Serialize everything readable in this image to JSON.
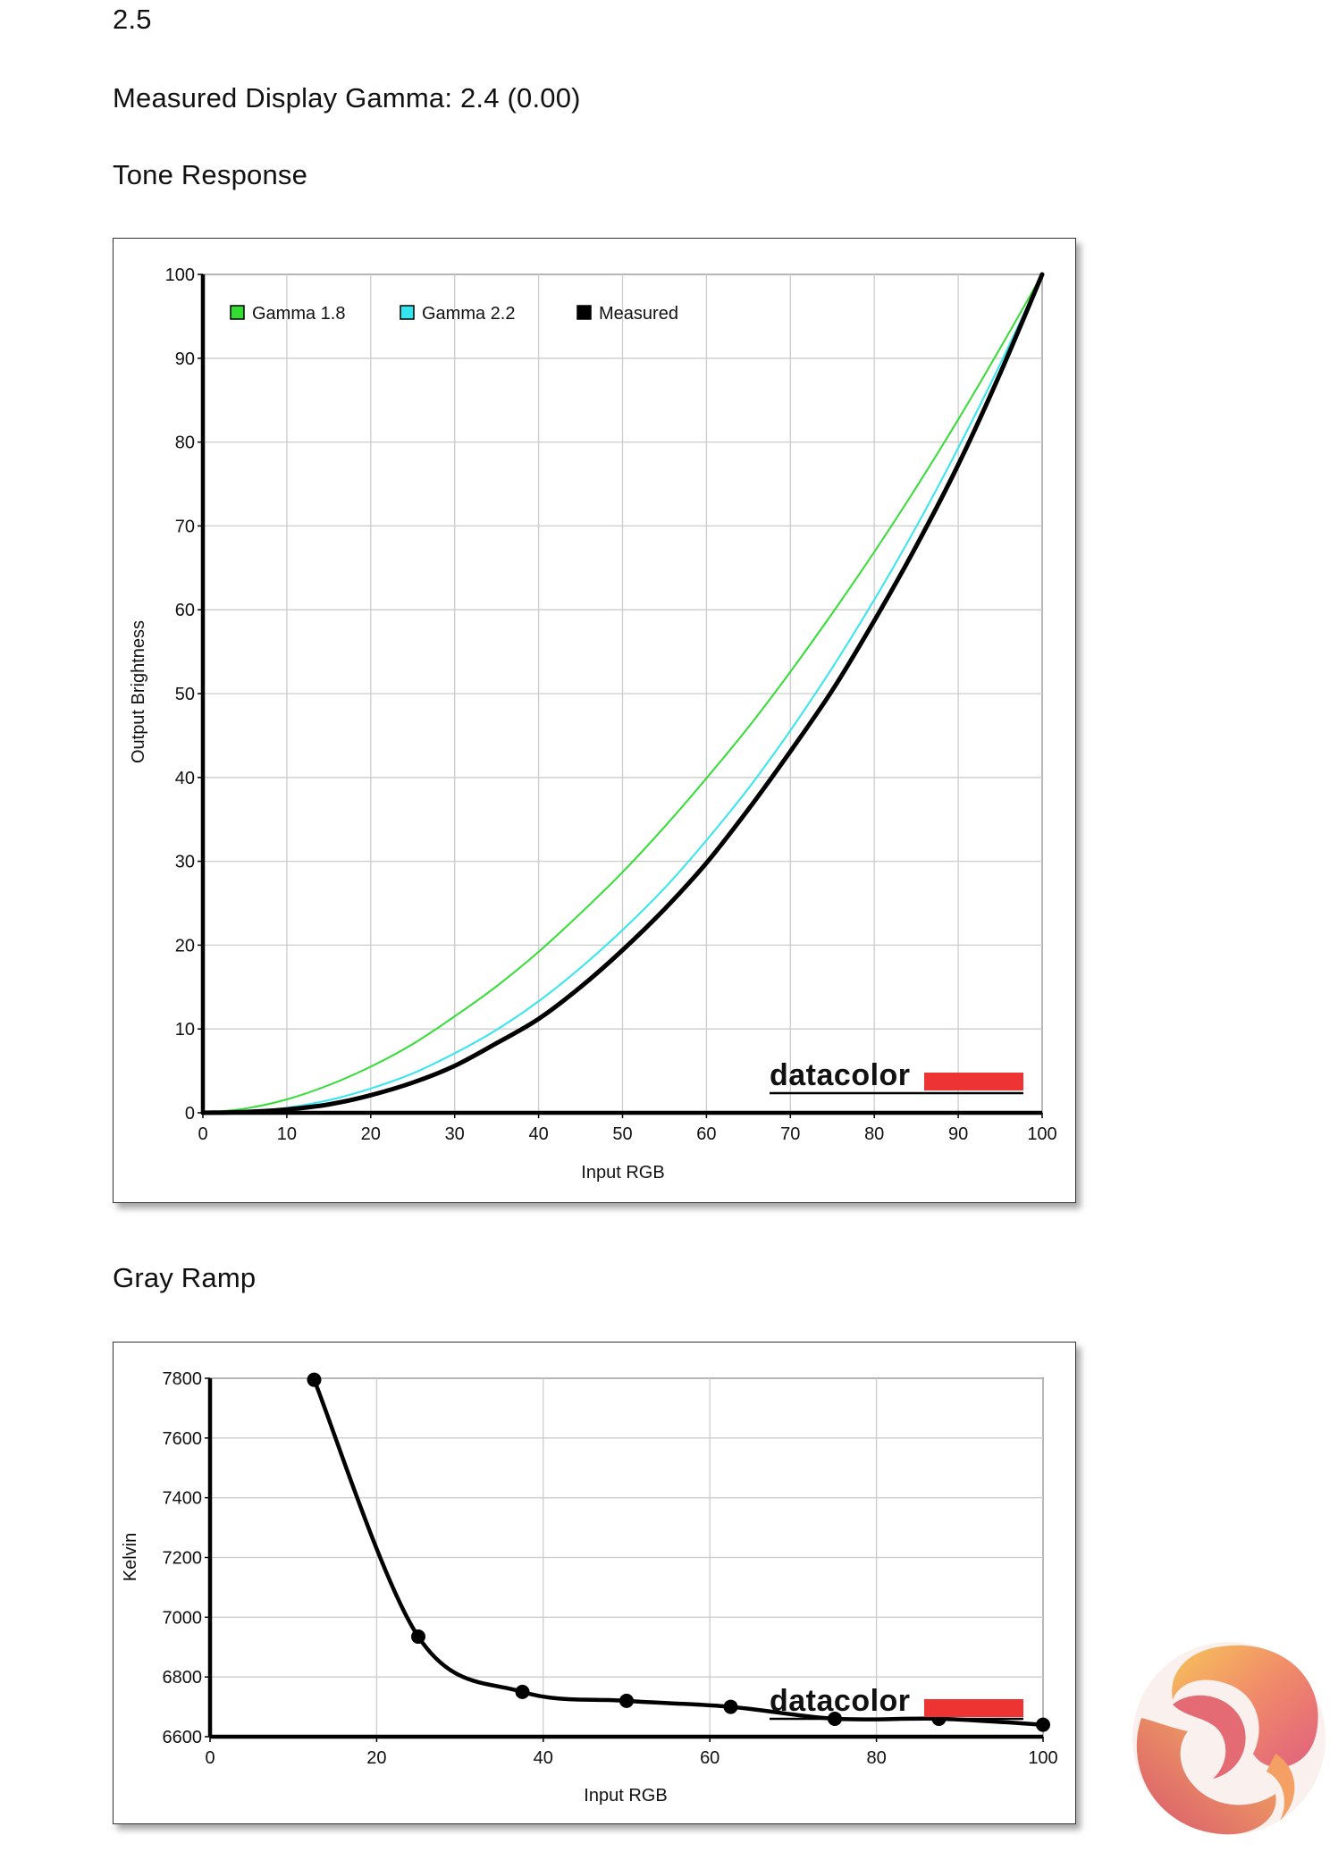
{
  "header": {
    "top_value": "2.5",
    "measured_gamma": "Measured Display Gamma: 2.4 (0.00)",
    "tone_title": "Tone Response",
    "gray_title": "Gray Ramp"
  },
  "watermark": "datacolor",
  "colors": {
    "gamma18": "#33dd33",
    "gamma22": "#33e6ee",
    "measured": "#000000",
    "logo_bar": "#ee3333",
    "grid": "#cccccc"
  },
  "chart_data": [
    {
      "type": "line",
      "xlabel": "Input RGB",
      "ylabel": "Output Brightness",
      "xlim": [
        0,
        100
      ],
      "ylim": [
        0,
        100
      ],
      "xticks": [
        0,
        10,
        20,
        30,
        40,
        50,
        60,
        70,
        80,
        90,
        100
      ],
      "yticks": [
        0,
        10,
        20,
        30,
        40,
        50,
        60,
        70,
        80,
        90,
        100
      ],
      "grid": true,
      "legend_position": "top-left",
      "series": [
        {
          "name": "Gamma 1.8",
          "color": "#33dd33",
          "gamma": 1.8,
          "x": [
            0,
            5,
            10,
            15,
            20,
            25,
            30,
            35,
            40,
            45,
            50,
            55,
            60,
            65,
            70,
            75,
            80,
            85,
            90,
            95,
            100
          ],
          "y": [
            0,
            0.5,
            1.6,
            3.3,
            5.5,
            8.2,
            11.5,
            15.1,
            19.2,
            23.8,
            28.7,
            34.1,
            39.9,
            46.0,
            52.6,
            59.6,
            66.9,
            74.6,
            82.7,
            91.2,
            100
          ]
        },
        {
          "name": "Gamma 2.2",
          "color": "#33e6ee",
          "gamma": 2.2,
          "x": [
            0,
            5,
            10,
            15,
            20,
            25,
            30,
            35,
            40,
            45,
            50,
            55,
            60,
            65,
            70,
            75,
            80,
            85,
            90,
            95,
            100
          ],
          "y": [
            0,
            0.1,
            0.6,
            1.5,
            2.9,
            4.7,
            7.1,
            9.9,
            13.3,
            17.3,
            21.8,
            26.8,
            32.5,
            38.7,
            45.6,
            53.1,
            61.2,
            69.9,
            79.3,
            89.3,
            100
          ]
        },
        {
          "name": "Measured",
          "color": "#000000",
          "x": [
            0,
            5,
            10,
            15,
            20,
            25,
            30,
            35,
            40,
            45,
            50,
            55,
            60,
            65,
            70,
            75,
            80,
            85,
            90,
            95,
            100
          ],
          "y": [
            0,
            0.1,
            0.4,
            1.0,
            2.1,
            3.6,
            5.6,
            8.3,
            11.2,
            15.0,
            19.4,
            24.3,
            29.8,
            36.2,
            43.1,
            50.4,
            58.7,
            67.6,
            77.3,
            88.2,
            100
          ]
        }
      ]
    },
    {
      "type": "line",
      "xlabel": "Input RGB",
      "ylabel": "Kelvin",
      "xlim": [
        0,
        100
      ],
      "ylim": [
        6600,
        7800
      ],
      "xticks": [
        0,
        20,
        40,
        60,
        80,
        100
      ],
      "yticks": [
        6600,
        6800,
        7000,
        7200,
        7400,
        7600,
        7800
      ],
      "grid": true,
      "series": [
        {
          "color": "#000000",
          "x": [
            12.5,
            25,
            37.5,
            50,
            62.5,
            75,
            87.5,
            100
          ],
          "y": [
            7795,
            6935,
            6750,
            6720,
            6700,
            6660,
            6660,
            6640
          ]
        }
      ]
    }
  ]
}
